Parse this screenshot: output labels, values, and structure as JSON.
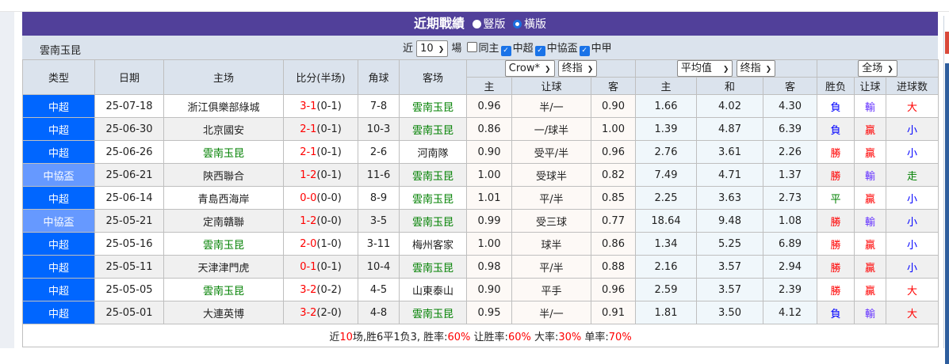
{
  "title": "近期戰績",
  "layout_options": [
    {
      "label": "豎版",
      "selected": false
    },
    {
      "label": "橫版",
      "selected": true
    }
  ],
  "team": "雲南玉昆",
  "filters": {
    "recent_prefix": "近",
    "recent_count": "10",
    "recent_suffix": "場",
    "checkboxes": [
      {
        "label": "同主",
        "checked": false
      },
      {
        "label": "中超",
        "checked": true
      },
      {
        "label": "中協盃",
        "checked": true
      },
      {
        "label": "中甲",
        "checked": true
      }
    ]
  },
  "headers": {
    "type": "类型",
    "date": "日期",
    "home": "主场",
    "score": "比分(半场)",
    "corner": "角球",
    "away": "客场",
    "odds_company": "Crow*",
    "odds_kind": "终指",
    "avg_company": "平均值",
    "avg_kind": "终指",
    "result_scope": "全场",
    "odds_home": "主",
    "odds_line": "让球",
    "odds_away": "客",
    "avg_home": "主",
    "avg_draw": "和",
    "avg_away": "客",
    "res_wl": "胜负",
    "res_hcp": "让球",
    "res_goals": "进球数"
  },
  "colors": {
    "title_bar": "#51409a",
    "league": "#0066ff",
    "cup": "#6699ff",
    "team_highlight": "#008000",
    "score": "#ff0000"
  },
  "rows": [
    {
      "type": "中超",
      "cup": false,
      "date": "25-07-18",
      "home": "浙江俱樂部綠城",
      "score": "3-1",
      "half": "(0-1)",
      "corner": "7-8",
      "away": "雲南玉昆",
      "o_h": "0.96",
      "o_line": "半/一",
      "o_a": "0.90",
      "a_h": "1.66",
      "a_d": "4.02",
      "a_a": "4.30",
      "wl": "負",
      "hcp": "輸",
      "goals": "大"
    },
    {
      "type": "中超",
      "cup": false,
      "date": "25-06-30",
      "home": "北京國安",
      "score": "2-1",
      "half": "(0-1)",
      "corner": "10-3",
      "away": "雲南玉昆",
      "o_h": "0.86",
      "o_line": "一/球半",
      "o_a": "1.00",
      "a_h": "1.39",
      "a_d": "4.87",
      "a_a": "6.39",
      "wl": "負",
      "hcp": "贏",
      "goals": "小"
    },
    {
      "type": "中超",
      "cup": false,
      "date": "25-06-26",
      "home": "雲南玉昆",
      "score": "2-1",
      "half": "(0-1)",
      "corner": "2-6",
      "away": "河南隊",
      "o_h": "0.90",
      "o_line": "受平/半",
      "o_a": "0.96",
      "a_h": "2.76",
      "a_d": "3.61",
      "a_a": "2.26",
      "wl": "勝",
      "hcp": "贏",
      "goals": "小"
    },
    {
      "type": "中協盃",
      "cup": true,
      "date": "25-06-21",
      "home": "陝西聯合",
      "score": "1-2",
      "half": "(0-1)",
      "corner": "11-6",
      "away": "雲南玉昆",
      "o_h": "1.00",
      "o_line": "受球半",
      "o_a": "0.82",
      "a_h": "7.49",
      "a_d": "4.71",
      "a_a": "1.37",
      "wl": "勝",
      "hcp": "輸",
      "goals": "走"
    },
    {
      "type": "中超",
      "cup": false,
      "date": "25-06-14",
      "home": "青島西海岸",
      "score": "0-0",
      "half": "(0-0)",
      "corner": "8-9",
      "away": "雲南玉昆",
      "o_h": "1.01",
      "o_line": "平/半",
      "o_a": "0.85",
      "a_h": "2.25",
      "a_d": "3.63",
      "a_a": "2.73",
      "wl": "平",
      "hcp": "贏",
      "goals": "小"
    },
    {
      "type": "中協盃",
      "cup": true,
      "date": "25-05-21",
      "home": "定南贛聯",
      "score": "1-2",
      "half": "(0-0)",
      "corner": "3-5",
      "away": "雲南玉昆",
      "o_h": "0.99",
      "o_line": "受三球",
      "o_a": "0.77",
      "a_h": "18.64",
      "a_d": "9.48",
      "a_a": "1.08",
      "wl": "勝",
      "hcp": "輸",
      "goals": "小"
    },
    {
      "type": "中超",
      "cup": false,
      "date": "25-05-16",
      "home": "雲南玉昆",
      "score": "2-0",
      "half": "(1-0)",
      "corner": "3-11",
      "away": "梅州客家",
      "o_h": "1.00",
      "o_line": "球半",
      "o_a": "0.86",
      "a_h": "1.34",
      "a_d": "5.25",
      "a_a": "6.89",
      "wl": "勝",
      "hcp": "贏",
      "goals": "小"
    },
    {
      "type": "中超",
      "cup": false,
      "date": "25-05-11",
      "home": "天津津門虎",
      "score": "0-1",
      "half": "(0-1)",
      "corner": "10-4",
      "away": "雲南玉昆",
      "o_h": "0.98",
      "o_line": "平/半",
      "o_a": "0.88",
      "a_h": "2.16",
      "a_d": "3.57",
      "a_a": "2.94",
      "wl": "勝",
      "hcp": "贏",
      "goals": "小"
    },
    {
      "type": "中超",
      "cup": false,
      "date": "25-05-05",
      "home": "雲南玉昆",
      "score": "3-2",
      "half": "(0-2)",
      "corner": "4-5",
      "away": "山東泰山",
      "o_h": "0.90",
      "o_line": "平手",
      "o_a": "0.96",
      "a_h": "2.59",
      "a_d": "3.57",
      "a_a": "2.39",
      "wl": "勝",
      "hcp": "贏",
      "goals": "大"
    },
    {
      "type": "中超",
      "cup": false,
      "date": "25-05-01",
      "home": "大連英博",
      "score": "3-2",
      "half": "(2-0)",
      "corner": "4-8",
      "away": "雲南玉昆",
      "o_h": "0.95",
      "o_line": "半/一",
      "o_a": "0.91",
      "a_h": "1.81",
      "a_d": "3.50",
      "a_a": "4.12",
      "wl": "負",
      "hcp": "輸",
      "goals": "大"
    }
  ],
  "summary": {
    "p1": "近",
    "count": "10",
    "p2": "场,胜6平1负3, 胜率:",
    "win_rate": "60%",
    "p3": " 让胜率:",
    "hcp_rate": "60%",
    "p4": " 大率:",
    "big_rate": "30%",
    "p5": " 单率:",
    "odd_rate": "70%"
  }
}
